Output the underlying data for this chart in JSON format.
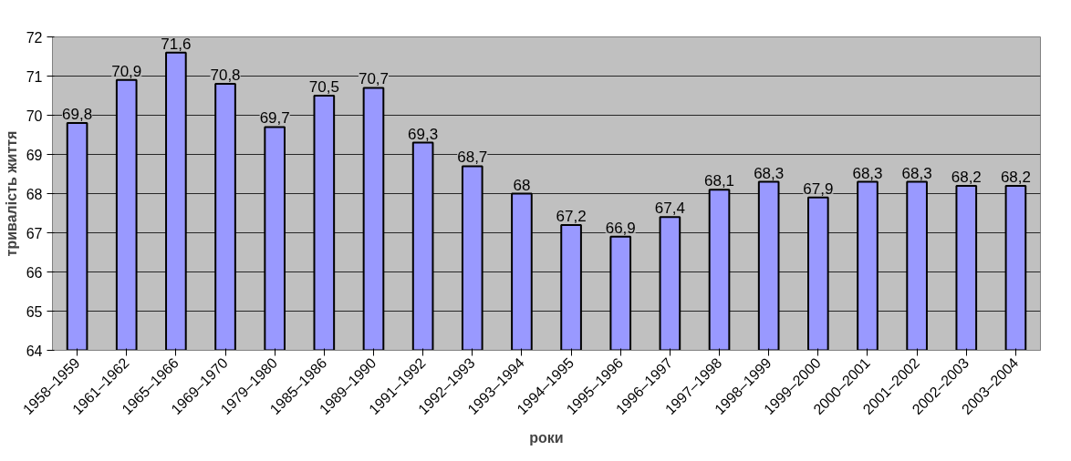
{
  "chart_data": {
    "type": "bar",
    "xlabel": "роки",
    "ylabel": "тривалість життя",
    "categories": [
      "1958–1959",
      "1961–1962",
      "1965–1966",
      "1969–1970",
      "1979–1980",
      "1985–1986",
      "1989–1990",
      "1991–1992",
      "1992–1993",
      "1993–1994",
      "1994–1995",
      "1995–1996",
      "1996–1997",
      "1997–1998",
      "1998–1999",
      "1999–2000",
      "2000–2001",
      "2001–2002",
      "2002–2003",
      "2003–2004"
    ],
    "values": [
      69.8,
      70.9,
      71.6,
      70.8,
      69.7,
      70.5,
      70.7,
      69.3,
      68.7,
      68,
      67.2,
      66.9,
      67.4,
      68.1,
      68.3,
      67.9,
      68.3,
      68.3,
      68.2,
      68.2
    ],
    "value_labels": [
      "69,8",
      "70,9",
      "71,6",
      "70,8",
      "69,7",
      "70,5",
      "70,7",
      "69,3",
      "68,7",
      "68",
      "67,2",
      "66,9",
      "67,4",
      "68,1",
      "68,3",
      "67,9",
      "68,3",
      "68,3",
      "68,2",
      "68,2"
    ],
    "color": "#9999ff",
    "ylim": [
      64,
      72
    ],
    "yticks": [
      64,
      65,
      66,
      67,
      68,
      69,
      70,
      71,
      72
    ],
    "grid": "y"
  }
}
